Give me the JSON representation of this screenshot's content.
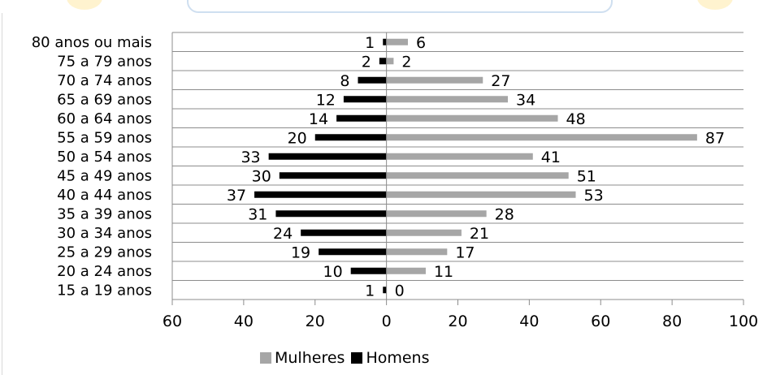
{
  "chart_data": {
    "type": "bar",
    "orientation": "horizontal",
    "layout": "population-pyramid",
    "categories": [
      "80 anos ou mais",
      "75 a 79 anos",
      "70 a 74 anos",
      "65 a 69 anos",
      "60 a 64 anos",
      "55 a 59 anos",
      "50 a 54 anos",
      "45 a 49 anos",
      "40 a 44 anos",
      "35 a 39 anos",
      "30 a 34 anos",
      "25 a 29 anos",
      "20 a 24 anos",
      "15 a 19 anos"
    ],
    "series": [
      {
        "name": "Mulheres",
        "color": "#a6a6a6",
        "side": "right",
        "values": [
          6,
          2,
          27,
          34,
          48,
          87,
          41,
          51,
          53,
          28,
          21,
          17,
          11,
          0
        ]
      },
      {
        "name": "Homens",
        "color": "#000000",
        "side": "left",
        "values": [
          1,
          2,
          8,
          12,
          14,
          20,
          33,
          30,
          37,
          31,
          24,
          19,
          10,
          1
        ]
      }
    ],
    "x_ticks": [
      "60",
      "40",
      "20",
      "0",
      "20",
      "40",
      "60",
      "80",
      "100"
    ],
    "xlim": [
      -60,
      100
    ],
    "grid": true,
    "legend_position": "bottom",
    "title": "",
    "xlabel": "",
    "ylabel": ""
  }
}
